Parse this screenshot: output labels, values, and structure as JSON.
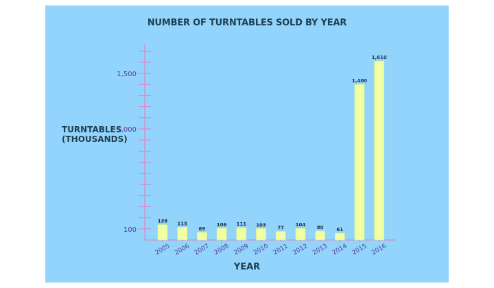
{
  "chart_data": {
    "type": "bar",
    "title": "NUMBER OF TURNTABLES SOLD BY YEAR",
    "xlabel": "YEAR",
    "ylabel_lines": [
      "TURNTABLES",
      "(THOUSANDS)"
    ],
    "categories": [
      "2005",
      "2006",
      "2007",
      "2008",
      "2009",
      "2010",
      "2011",
      "2012",
      "2013",
      "2014",
      "2015",
      "2016"
    ],
    "values": [
      138,
      115,
      69,
      106,
      111,
      103,
      77,
      104,
      80,
      61,
      1400,
      1610
    ],
    "data_labels": [
      "138",
      "115",
      "69",
      "106",
      "111",
      "103",
      "77",
      "104",
      "80",
      "61",
      "1,400",
      "1,610"
    ],
    "yticks": [
      {
        "value": 100,
        "label": "100"
      },
      {
        "value": 1000,
        "label": "1,000"
      },
      {
        "value": 1500,
        "label": "1,500"
      }
    ],
    "ylim": [
      0,
      1700
    ],
    "scale_breaks": [
      {
        "value": 0,
        "tick": 0
      },
      {
        "value": 100,
        "tick": 1
      },
      {
        "value": 1000,
        "tick": 10
      },
      {
        "value": 1500,
        "tick": 15
      },
      {
        "value": 1700,
        "tick": 17
      }
    ],
    "grid": false,
    "legend": "none",
    "colors": {
      "background": "#92d4fc",
      "bar": "#f2ffa0",
      "bar_edge": "#dfee84",
      "axis": "#e878b8",
      "tick_text": "#5a3a9a",
      "title_text": "#1f3f4f"
    }
  }
}
